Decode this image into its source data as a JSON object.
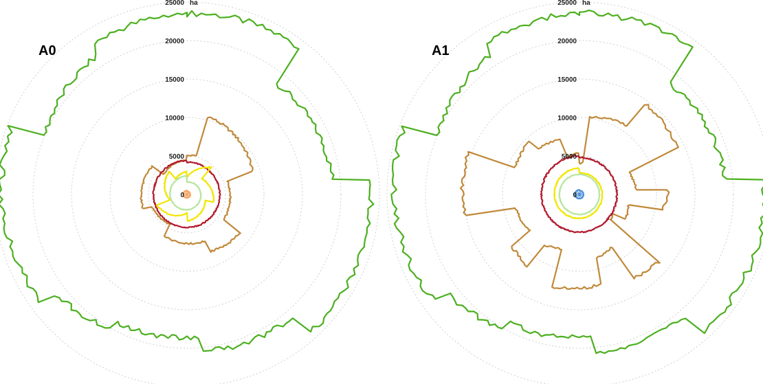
{
  "chart_data": [
    {
      "type": "radar",
      "panel_label": "A0",
      "unit": "ha",
      "r_ticks": [
        0,
        5000,
        10000,
        15000,
        20000,
        25000
      ],
      "r_tick_labels": [
        "0",
        "5000",
        "10000",
        "15000",
        "20000",
        "25000"
      ],
      "rlim": [
        0,
        25000
      ],
      "grid": true,
      "series": [
        {
          "color": "#4caf1f",
          "segments": [
            {
              "from": 0,
              "to": 0.105,
              "start": 23500,
              "end": 24000
            },
            {
              "from": 0.105,
              "to": 0.235,
              "start": 18500,
              "end": 19000
            },
            {
              "from": 0.235,
              "to": 0.385,
              "start": 24000,
              "end": 24000
            },
            {
              "from": 0.385,
              "to": 0.485,
              "start": 21000,
              "end": 20500
            },
            {
              "from": 0.485,
              "to": 0.58,
              "start": 18500,
              "end": 19000
            },
            {
              "from": 0.58,
              "to": 0.65,
              "start": 20000,
              "end": 21500
            },
            {
              "from": 0.65,
              "to": 0.81,
              "start": 23500,
              "end": 24500
            },
            {
              "from": 0.81,
              "to": 0.91,
              "start": 20000,
              "end": 21500
            },
            {
              "from": 0.91,
              "to": 1.0,
              "start": 23000,
              "end": 23500
            }
          ]
        },
        {
          "color": "#c0893a",
          "segments": [
            {
              "from": 0,
              "to": 0.04,
              "start": 5000,
              "end": 5200
            },
            {
              "from": 0.04,
              "to": 0.2,
              "start": 10500,
              "end": 9000
            },
            {
              "from": 0.2,
              "to": 0.35,
              "start": 5500,
              "end": 5800
            },
            {
              "from": 0.35,
              "to": 0.44,
              "start": 8500,
              "end": 8000
            },
            {
              "from": 0.44,
              "to": 0.58,
              "start": 6500,
              "end": 6200
            },
            {
              "from": 0.58,
              "to": 0.7,
              "start": 4500,
              "end": 4800
            },
            {
              "from": 0.7,
              "to": 0.86,
              "start": 6000,
              "end": 5800
            },
            {
              "from": 0.86,
              "to": 1.0,
              "start": 4000,
              "end": 4500
            }
          ]
        },
        {
          "color": "#b2182b",
          "segments": [
            {
              "from": 0,
              "to": 1.0,
              "start": 4200,
              "end": 4400
            }
          ]
        },
        {
          "color": "#f2e600",
          "segments": [
            {
              "from": 0,
              "to": 0.12,
              "start": 2200,
              "end": 4800
            },
            {
              "from": 0.12,
              "to": 0.3,
              "start": 2800,
              "end": 3600
            },
            {
              "from": 0.3,
              "to": 0.5,
              "start": 2500,
              "end": 3500
            },
            {
              "from": 0.5,
              "to": 0.7,
              "start": 2400,
              "end": 4200
            },
            {
              "from": 0.7,
              "to": 0.9,
              "start": 2300,
              "end": 3800
            },
            {
              "from": 0.9,
              "to": 1.0,
              "start": 2500,
              "end": 3000
            }
          ]
        },
        {
          "color": "#b8e6a0",
          "segments": [
            {
              "from": 0,
              "to": 1.0,
              "start": 1600,
              "end": 2400
            }
          ]
        },
        {
          "color": "#f4a460",
          "segments": [
            {
              "from": 0,
              "to": 1.0,
              "start": 400,
              "end": 500
            }
          ]
        }
      ]
    },
    {
      "type": "radar",
      "panel_label": "A1",
      "unit": "ha",
      "r_ticks": [
        0,
        5000,
        10000,
        15000,
        20000,
        25000
      ],
      "r_tick_labels": [
        "0",
        "5000",
        "10000",
        "15000",
        "20000",
        "25000"
      ],
      "rlim": [
        0,
        25000
      ],
      "grid": true,
      "series": [
        {
          "color": "#4caf1f",
          "segments": [
            {
              "from": 0,
              "to": 0.105,
              "start": 23500,
              "end": 24000
            },
            {
              "from": 0.105,
              "to": 0.235,
              "start": 18500,
              "end": 19000
            },
            {
              "from": 0.235,
              "to": 0.385,
              "start": 24000,
              "end": 24000
            },
            {
              "from": 0.385,
              "to": 0.485,
              "start": 21000,
              "end": 20500
            },
            {
              "from": 0.485,
              "to": 0.58,
              "start": 18500,
              "end": 19000
            },
            {
              "from": 0.58,
              "to": 0.65,
              "start": 20000,
              "end": 21500
            },
            {
              "from": 0.65,
              "to": 0.81,
              "start": 23500,
              "end": 24500
            },
            {
              "from": 0.81,
              "to": 0.91,
              "start": 20000,
              "end": 21500
            },
            {
              "from": 0.91,
              "to": 1.0,
              "start": 23000,
              "end": 23500
            }
          ]
        },
        {
          "color": "#c0893a",
          "segments": [
            {
              "from": 0,
              "to": 0.02,
              "start": 4000,
              "end": 4200
            },
            {
              "from": 0.02,
              "to": 0.1,
              "start": 10000,
              "end": 11000
            },
            {
              "from": 0.1,
              "to": 0.18,
              "start": 14500,
              "end": 14000
            },
            {
              "from": 0.18,
              "to": 0.24,
              "start": 7000,
              "end": 7500
            },
            {
              "from": 0.24,
              "to": 0.28,
              "start": 11500,
              "end": 11000
            },
            {
              "from": 0.28,
              "to": 0.33,
              "start": 6500,
              "end": 6800
            },
            {
              "from": 0.33,
              "to": 0.36,
              "start": 5000,
              "end": 5200
            },
            {
              "from": 0.36,
              "to": 0.41,
              "start": 13500,
              "end": 13000
            },
            {
              "from": 0.41,
              "to": 0.46,
              "start": 8000,
              "end": 8500
            },
            {
              "from": 0.46,
              "to": 0.55,
              "start": 12000,
              "end": 12500
            },
            {
              "from": 0.55,
              "to": 0.6,
              "start": 7500,
              "end": 8000
            },
            {
              "from": 0.6,
              "to": 0.65,
              "start": 11500,
              "end": 11000
            },
            {
              "from": 0.65,
              "to": 0.72,
              "start": 8000,
              "end": 8500
            },
            {
              "from": 0.72,
              "to": 0.81,
              "start": 15000,
              "end": 15500
            },
            {
              "from": 0.81,
              "to": 0.88,
              "start": 9000,
              "end": 9500
            },
            {
              "from": 0.88,
              "to": 0.95,
              "start": 8000,
              "end": 7500
            },
            {
              "from": 0.95,
              "to": 1.0,
              "start": 5000,
              "end": 5500
            }
          ]
        },
        {
          "color": "#b2182b",
          "segments": [
            {
              "from": 0,
              "to": 1.0,
              "start": 4800,
              "end": 5000
            }
          ]
        },
        {
          "color": "#f2e600",
          "segments": [
            {
              "from": 0,
              "to": 1.0,
              "start": 2800,
              "end": 3400
            }
          ]
        },
        {
          "color": "#b8e6a0",
          "segments": [
            {
              "from": 0,
              "to": 1.0,
              "start": 2600,
              "end": 2600
            }
          ]
        },
        {
          "color": "#4a90d9",
          "segments": [
            {
              "from": 0,
              "to": 1.0,
              "start": 500,
              "end": 600
            }
          ]
        }
      ]
    }
  ]
}
